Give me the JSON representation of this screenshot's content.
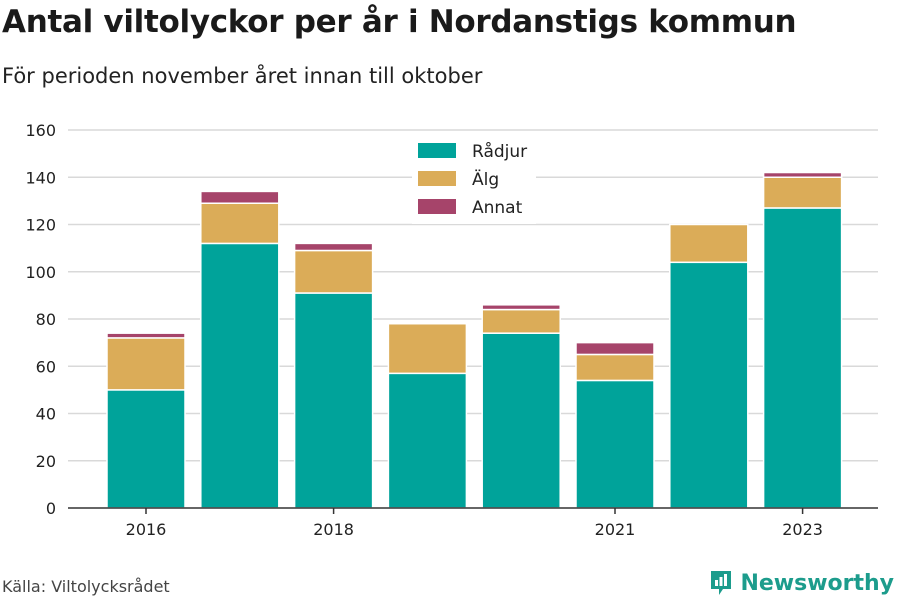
{
  "header": {
    "title": "Antal viltolyckor per år i Nordanstigs kommun",
    "subtitle": "För perioden november året innan till oktober"
  },
  "footer": {
    "source": "Källa: Viltolycksrådet",
    "brand": "Newsworthy"
  },
  "colors": {
    "radjur": "#00a39a",
    "alg": "#dbac58",
    "annat": "#a6446a",
    "grid": "#d9d9d9",
    "brand": "#1c9c8c"
  },
  "icons": {
    "brand": "newsworthy-logo-icon"
  },
  "chart_data": {
    "type": "bar",
    "stacked": true,
    "categories": [
      "2016",
      "2017",
      "2018",
      "2019",
      "2020",
      "2021",
      "2022",
      "2023"
    ],
    "x_tick_labels": [
      "2016",
      "",
      "2018",
      "",
      "",
      "2021",
      "",
      "2023"
    ],
    "series": [
      {
        "name": "Rådjur",
        "color": "#00a39a",
        "values": [
          50,
          112,
          91,
          57,
          74,
          54,
          104,
          127
        ]
      },
      {
        "name": "Älg",
        "color": "#dbac58",
        "values": [
          22,
          17,
          18,
          21,
          10,
          11,
          16,
          13
        ]
      },
      {
        "name": "Annat",
        "color": "#a6446a",
        "values": [
          2,
          5,
          3,
          0,
          2,
          5,
          0,
          2
        ]
      }
    ],
    "ylim": [
      0,
      160
    ],
    "yticks": [
      0,
      20,
      40,
      60,
      80,
      100,
      120,
      140,
      160
    ],
    "grid": true,
    "legend_position": "top-center"
  }
}
